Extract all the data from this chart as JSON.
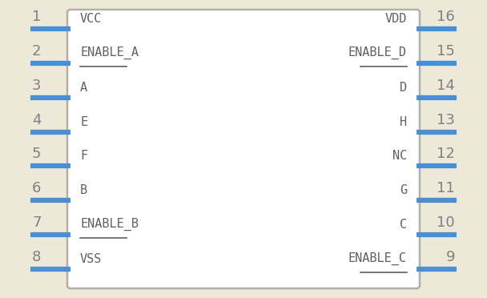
{
  "bg_color": "#ede8d8",
  "box_color": "#b0b0a8",
  "box_fill": "#ffffff",
  "pin_color": "#4a8fd4",
  "text_color": "#606060",
  "num_color": "#808080",
  "left_pins": [
    {
      "num": "1",
      "label": "VCC",
      "bar": false
    },
    {
      "num": "2",
      "label": "ENABLE_A",
      "bar": true
    },
    {
      "num": "3",
      "label": "A",
      "bar": false
    },
    {
      "num": "4",
      "label": "E",
      "bar": false
    },
    {
      "num": "5",
      "label": "F",
      "bar": false
    },
    {
      "num": "6",
      "label": "B",
      "bar": false
    },
    {
      "num": "7",
      "label": "ENABLE_B",
      "bar": true
    },
    {
      "num": "8",
      "label": "VSS",
      "bar": false
    }
  ],
  "right_pins": [
    {
      "num": "16",
      "label": "VDD",
      "bar": false
    },
    {
      "num": "15",
      "label": "ENABLE_D",
      "bar": true
    },
    {
      "num": "14",
      "label": "D",
      "bar": false
    },
    {
      "num": "13",
      "label": "H",
      "bar": false
    },
    {
      "num": "12",
      "label": "NC",
      "bar": false
    },
    {
      "num": "11",
      "label": "G",
      "bar": false
    },
    {
      "num": "10",
      "label": "C",
      "bar": false
    },
    {
      "num": "9",
      "label": "ENABLE_C",
      "bar": true
    }
  ],
  "figsize": [
    6.08,
    3.72
  ],
  "dpi": 100
}
